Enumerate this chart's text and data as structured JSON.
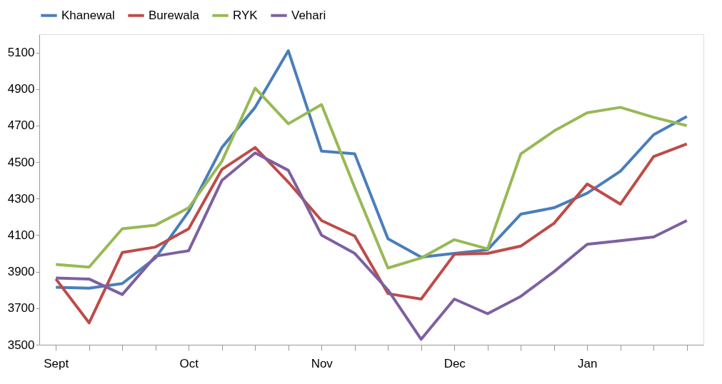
{
  "chart_data": {
    "type": "line",
    "categories": [
      "Sept",
      null,
      null,
      null,
      "Oct",
      null,
      null,
      null,
      "Nov",
      null,
      null,
      null,
      "Dec",
      null,
      null,
      null,
      "Jan",
      null,
      null,
      null
    ],
    "series": [
      {
        "name": "Khanewal",
        "color": "#4a7ebb",
        "values": [
          3815,
          3810,
          3835,
          3975,
          4230,
          4580,
          4800,
          5110,
          4560,
          4545,
          4080,
          3980,
          4000,
          4020,
          4215,
          4250,
          4330,
          4450,
          4650,
          4750
        ]
      },
      {
        "name": "Burewala",
        "color": "#be4b48",
        "values": [
          3860,
          3620,
          4005,
          4035,
          4135,
          4460,
          4580,
          4390,
          4180,
          4095,
          3780,
          3750,
          3995,
          4000,
          4040,
          4165,
          4380,
          4270,
          4530,
          4600
        ]
      },
      {
        "name": "RYK",
        "color": "#98b954",
        "values": [
          3940,
          3925,
          4135,
          4155,
          4250,
          4505,
          4905,
          4710,
          4815,
          4360,
          3920,
          3975,
          4075,
          4025,
          4545,
          4670,
          4770,
          4800,
          4745,
          4700
        ]
      },
      {
        "name": "Vehari",
        "color": "#7d60a0",
        "values": [
          3865,
          3860,
          3775,
          3985,
          4015,
          4400,
          4550,
          4455,
          4100,
          4000,
          3800,
          3530,
          3750,
          3670,
          3765,
          3900,
          4050,
          4070,
          4090,
          4180
        ]
      }
    ],
    "ylim": [
      3500,
      5200
    ],
    "yticks": [
      3500,
      3700,
      3900,
      4100,
      4300,
      4500,
      4700,
      4900,
      5100
    ],
    "grid": false,
    "legend": "top",
    "marker": "none",
    "line_style": "solid"
  }
}
